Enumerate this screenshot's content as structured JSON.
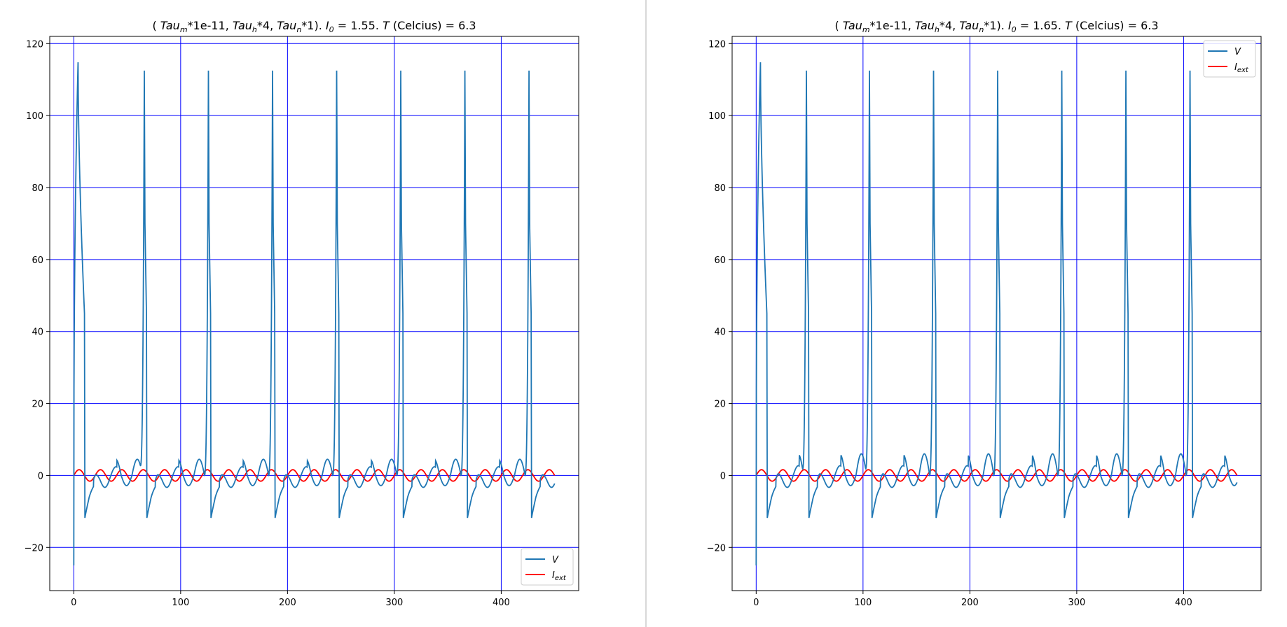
{
  "colors": {
    "grid": "#0000ff",
    "v_line": "#1f77b4",
    "i_line": "#ff0000",
    "divider": "#b0b0b0"
  },
  "chart_data": [
    {
      "type": "line",
      "title": {
        "pre": "( ",
        "tau_m": "Tau",
        "sub_m": "m",
        "mid1": "*1e-11, ",
        "tau_h": "Tau",
        "sub_h": "h",
        "mid2": "*4, ",
        "tau_n": "Tau",
        "sub_n": "n",
        "mid3": "*1). ",
        "i0": "I",
        "sub_0": "0",
        "i0_eq": " = 1.55. ",
        "t_sym": "T",
        "t_rest": " (Celcius) = 6.3"
      },
      "xlim": [
        -22.5,
        472.5
      ],
      "ylim": [
        -32,
        122
      ],
      "xticks": [
        0,
        100,
        200,
        300,
        400
      ],
      "yticks": [
        -20,
        0,
        20,
        40,
        60,
        80,
        100,
        120
      ],
      "x_tick_labels": [
        "0",
        "100",
        "200",
        "300",
        "400"
      ],
      "y_tick_labels": [
        "−20",
        "0",
        "20",
        "40",
        "60",
        "80",
        "100",
        "120"
      ],
      "grid": true,
      "legend_position": "bottom-right",
      "legend": {
        "v": "V",
        "i": "I",
        "i_sub": "ext"
      },
      "series_v": {
        "t_end": 450,
        "v_start": -25,
        "first_spike_t": 4,
        "first_spike_peak": 114.8,
        "spike_times": [
          66,
          126,
          186,
          246,
          306,
          366,
          426
        ],
        "spike_peak": 112.5,
        "trough": -11.8,
        "bump_small": 2.5,
        "bump_large": 4.5
      },
      "series_i": {
        "amplitude": 1.6,
        "period": 20,
        "t_end": 450
      }
    },
    {
      "type": "line",
      "title": {
        "pre": "( ",
        "tau_m": "Tau",
        "sub_m": "m",
        "mid1": "*1e-11, ",
        "tau_h": "Tau",
        "sub_h": "h",
        "mid2": "*4, ",
        "tau_n": "Tau",
        "sub_n": "n",
        "mid3": "*1). ",
        "i0": "I",
        "sub_0": "0",
        "i0_eq": " = 1.65. ",
        "t_sym": "T",
        "t_rest": " (Celcius) = 6.3"
      },
      "xlim": [
        -22.5,
        472.5
      ],
      "ylim": [
        -32,
        122
      ],
      "xticks": [
        0,
        100,
        200,
        300,
        400
      ],
      "yticks": [
        -20,
        0,
        20,
        40,
        60,
        80,
        100,
        120
      ],
      "x_tick_labels": [
        "0",
        "100",
        "200",
        "300",
        "400"
      ],
      "y_tick_labels": [
        "−20",
        "0",
        "20",
        "40",
        "60",
        "80",
        "100",
        "120"
      ],
      "grid": true,
      "legend_position": "top-right",
      "legend": {
        "v": "V",
        "i": "I",
        "i_sub": "ext"
      },
      "series_v": {
        "t_end": 450,
        "v_start": -25,
        "first_spike_t": 4,
        "first_spike_peak": 114.8,
        "spike_times": [
          47,
          106,
          166,
          226,
          286,
          346,
          406
        ],
        "spike_peak": 112.5,
        "trough": -11.8,
        "bump_small": 2.8,
        "bump_large": 6.0
      },
      "series_i": {
        "amplitude": 1.6,
        "period": 20,
        "t_end": 450
      }
    }
  ]
}
